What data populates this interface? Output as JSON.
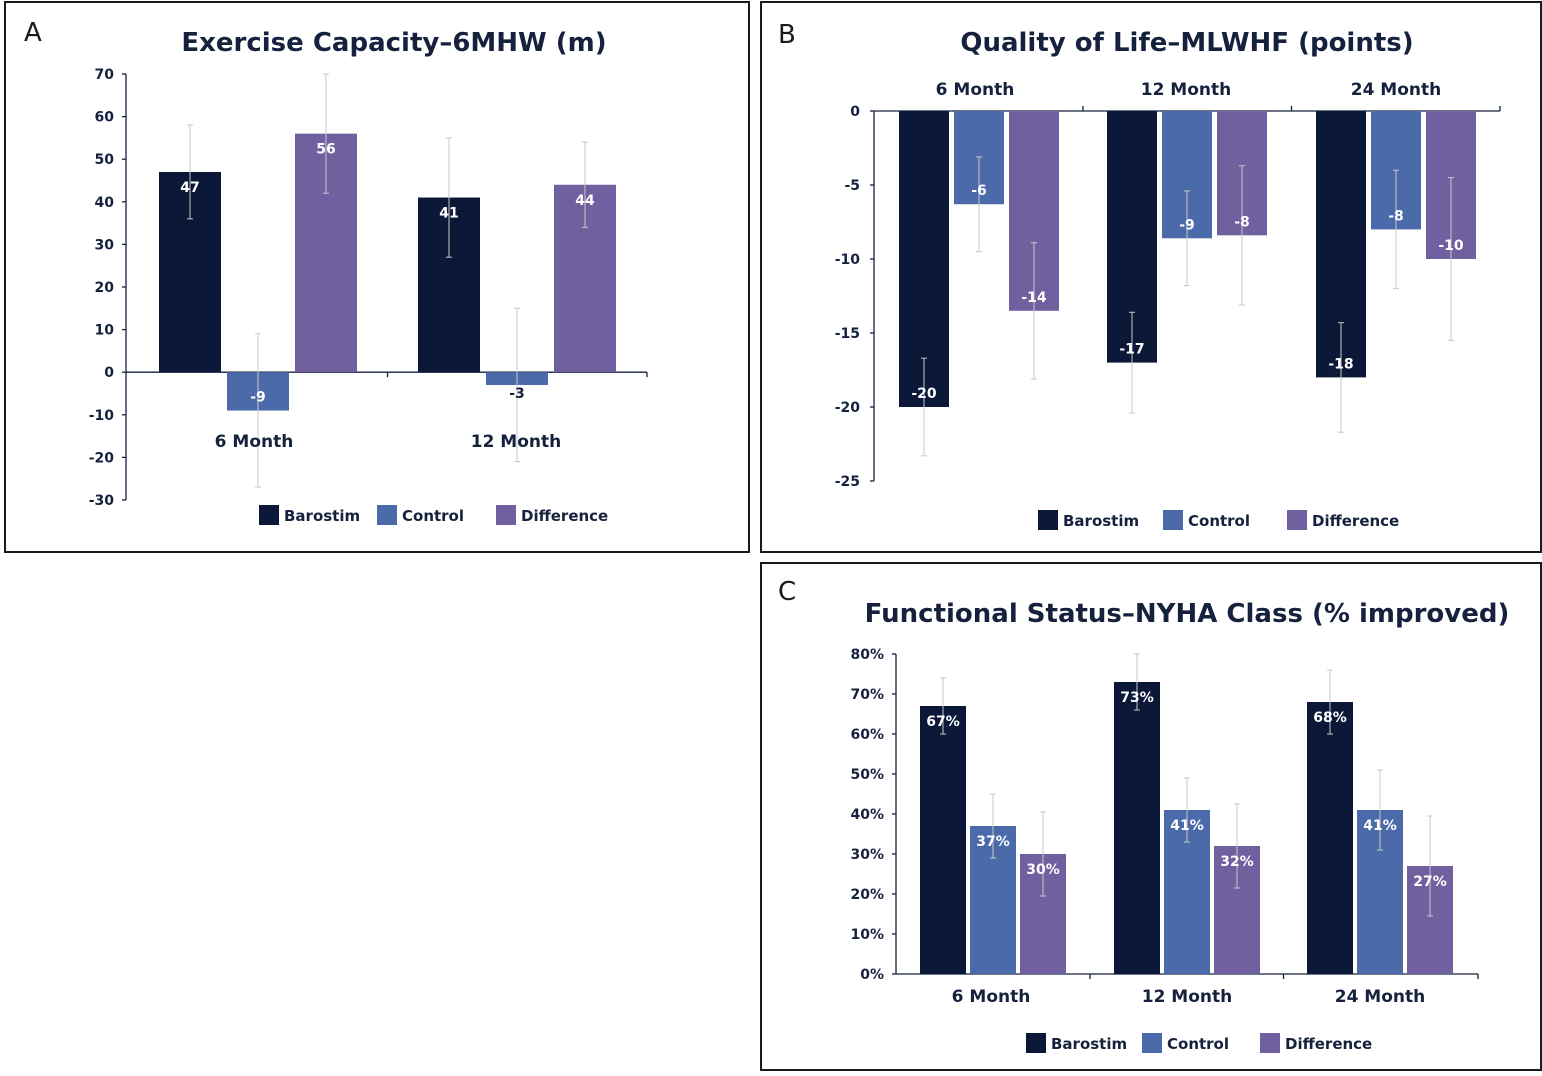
{
  "colors": {
    "barostim": "#0c1838",
    "control": "#4b6aaa",
    "difference": "#7060a0"
  },
  "chart_data": [
    {
      "panel_label": "A",
      "type": "bar",
      "title": "Exercise Capacity–6MHW (m)",
      "categories": [
        "6 Month",
        "12 Month"
      ],
      "series": [
        {
          "name": "Barostim",
          "values": [
            47,
            41
          ],
          "labels": [
            "47",
            "41"
          ],
          "err": [
            11,
            14
          ]
        },
        {
          "name": "Control",
          "values": [
            -9,
            -3
          ],
          "labels": [
            "-9",
            "-3"
          ],
          "err": [
            18,
            18
          ]
        },
        {
          "name": "Difference",
          "values": [
            56,
            44
          ],
          "labels": [
            "56",
            "44"
          ],
          "err": [
            14,
            10
          ]
        }
      ],
      "ylim": [
        -30,
        70
      ],
      "yticks": [
        "70",
        "60",
        "50",
        "40",
        "30",
        "20",
        "10",
        "0",
        "-10",
        "-20",
        "-30"
      ],
      "category_labels_position": "below-zero-line",
      "legend": "bottom",
      "grid": false
    },
    {
      "panel_label": "B",
      "type": "bar",
      "title": "Quality of Life–MLWHF (points)",
      "categories": [
        "6 Month",
        "12 Month",
        "24 Month"
      ],
      "series": [
        {
          "name": "Barostim",
          "values": [
            -20,
            -17,
            -18
          ],
          "labels": [
            "-20",
            "-17",
            "-18"
          ],
          "err": [
            3.3,
            3.4,
            3.7
          ]
        },
        {
          "name": "Control",
          "values": [
            -6.3,
            -8.6,
            -8
          ],
          "labels": [
            "-6",
            "-9",
            "-8"
          ],
          "err": [
            3.2,
            3.2,
            4
          ]
        },
        {
          "name": "Difference",
          "values": [
            -13.5,
            -8.4,
            -10
          ],
          "labels": [
            "-14",
            "-8",
            "-10"
          ],
          "err": [
            4.6,
            4.7,
            5.5
          ]
        }
      ],
      "ylim": [
        -25,
        0
      ],
      "yticks": [
        "0",
        "-5",
        "-10",
        "-15",
        "-20",
        "-25"
      ],
      "category_labels_position": "top",
      "legend": "bottom",
      "grid": false
    },
    {
      "panel_label": "C",
      "type": "bar",
      "title": "Functional Status–NYHA Class (% improved)",
      "categories": [
        "6 Month",
        "12 Month",
        "24 Month"
      ],
      "series": [
        {
          "name": "Barostim",
          "values": [
            67,
            73,
            68
          ],
          "labels": [
            "67%",
            "73%",
            "68%"
          ],
          "err": [
            7,
            7,
            8
          ]
        },
        {
          "name": "Control",
          "values": [
            37,
            41,
            41
          ],
          "labels": [
            "37%",
            "41%",
            "41%"
          ],
          "err": [
            8,
            8,
            10
          ]
        },
        {
          "name": "Difference",
          "values": [
            30,
            32,
            27
          ],
          "labels": [
            "30%",
            "32%",
            "27%"
          ],
          "err": [
            10.5,
            10.5,
            12.5
          ]
        }
      ],
      "ylim": [
        0,
        80
      ],
      "yticks": [
        "80%",
        "70%",
        "60%",
        "50%",
        "40%",
        "30%",
        "20%",
        "10%",
        "0%"
      ],
      "category_labels_position": "bottom",
      "legend": "bottom",
      "grid": false
    }
  ]
}
